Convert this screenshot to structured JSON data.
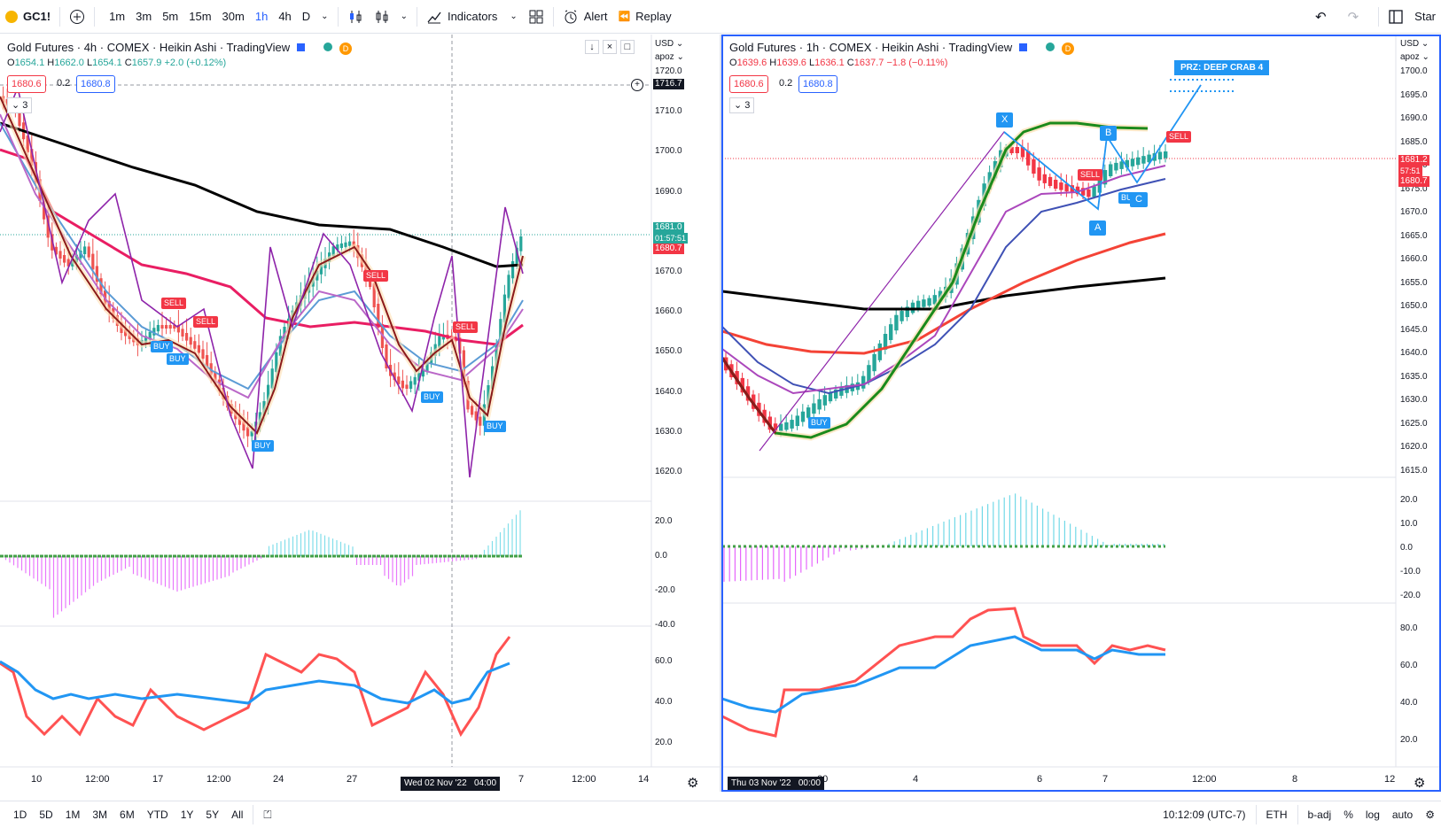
{
  "toolbar": {
    "symbol": "GC1!",
    "intervals": [
      "1m",
      "3m",
      "5m",
      "15m",
      "30m",
      "1h",
      "4h",
      "D"
    ],
    "active_interval": "1h",
    "indicators": "Indicators",
    "alert": "Alert",
    "replay": "Replay",
    "start": "Star"
  },
  "left": {
    "title": "Gold Futures · 4h · COMEX · Heikin Ashi · TradingView",
    "o": "1654.1",
    "h": "1662.0",
    "l": "1654.1",
    "c": "1657.9",
    "chg": "+2.0 (+0.12%)",
    "bid": "1680.6",
    "spread": "0.2",
    "ask": "1680.8",
    "collapse": "3",
    "currency": "USD",
    "scale": "apoz",
    "price_labels": [
      "1720.0",
      "1710.0",
      "1700.0",
      "1690.0",
      "1680.0",
      "1670.0",
      "1660.0",
      "1650.0",
      "1640.0",
      "1630.0",
      "1620.0"
    ],
    "crosshair_price": "1716.7",
    "last_price": "1681.0",
    "countdown": "01:57:51",
    "bid_tag": "1680.7",
    "osc_labels": [
      "20.0",
      "0.0",
      "-20.0",
      "-40.0"
    ],
    "rsi_labels": [
      "60.0",
      "40.0",
      "20.0"
    ],
    "time_labels": [
      "10",
      "12:00",
      "17",
      "12:00",
      "24",
      "27",
      "7",
      "12:00",
      "14"
    ],
    "time_cursor": "Wed 02 Nov '22",
    "time_cursor_hour": "04:00",
    "signals": [
      "SELL",
      "SELL",
      "BUY",
      "BUY",
      "BUY",
      "SELL",
      "BUY",
      "SELL",
      "BUY",
      "BUY"
    ]
  },
  "right": {
    "title": "Gold Futures · 1h · COMEX · Heikin Ashi · TradingView",
    "o": "1639.6",
    "h": "1639.6",
    "l": "1636.1",
    "c": "1637.7",
    "chg": "−1.8 (−0.11%)",
    "bid": "1680.6",
    "spread": "0.2",
    "ask": "1680.8",
    "collapse": "3",
    "currency": "USD",
    "scale": "apoz",
    "price_labels": [
      "1700.0",
      "1695.0",
      "1690.0",
      "1685.0",
      "1680.0",
      "1675.0",
      "1670.0",
      "1665.0",
      "1660.0",
      "1655.0",
      "1650.0",
      "1645.0",
      "1640.0",
      "1635.0",
      "1630.0",
      "1625.0",
      "1620.0",
      "1615.0"
    ],
    "last_price": "1681.2",
    "countdown": "57:51",
    "bid_tag": "1680.7",
    "osc_labels": [
      "20.0",
      "10.0",
      "0.0",
      "-10.0",
      "-20.0"
    ],
    "rsi_labels": [
      "80.0",
      "60.0",
      "40.0",
      "20.0"
    ],
    "time_labels": [
      "00",
      "4",
      "6",
      "7",
      "12:00",
      "8",
      "12"
    ],
    "time_cursor": "Thu 03 Nov '22",
    "time_cursor_hour": "00:00",
    "pattern_label": "PRZ: DEEP CRAB 4",
    "points": [
      "X",
      "A",
      "B",
      "C"
    ],
    "signals": [
      "BUY",
      "SELL",
      "BUY",
      "SELL"
    ]
  },
  "bottom": {
    "ranges": [
      "1D",
      "5D",
      "1M",
      "3M",
      "6M",
      "YTD",
      "1Y",
      "5Y",
      "All"
    ],
    "clock": "10:12:09 (UTC-7)",
    "session": "ETH",
    "badj": "b-adj",
    "pct": "%",
    "log": "log",
    "auto": "auto"
  },
  "colors": {
    "up": "#26a69a",
    "down": "#ef5350",
    "black_ma": "#000000",
    "red_ma": "#e91e63",
    "purple": "#9c27b0",
    "blue": "#2196f3",
    "green": "#1b8a1b"
  }
}
